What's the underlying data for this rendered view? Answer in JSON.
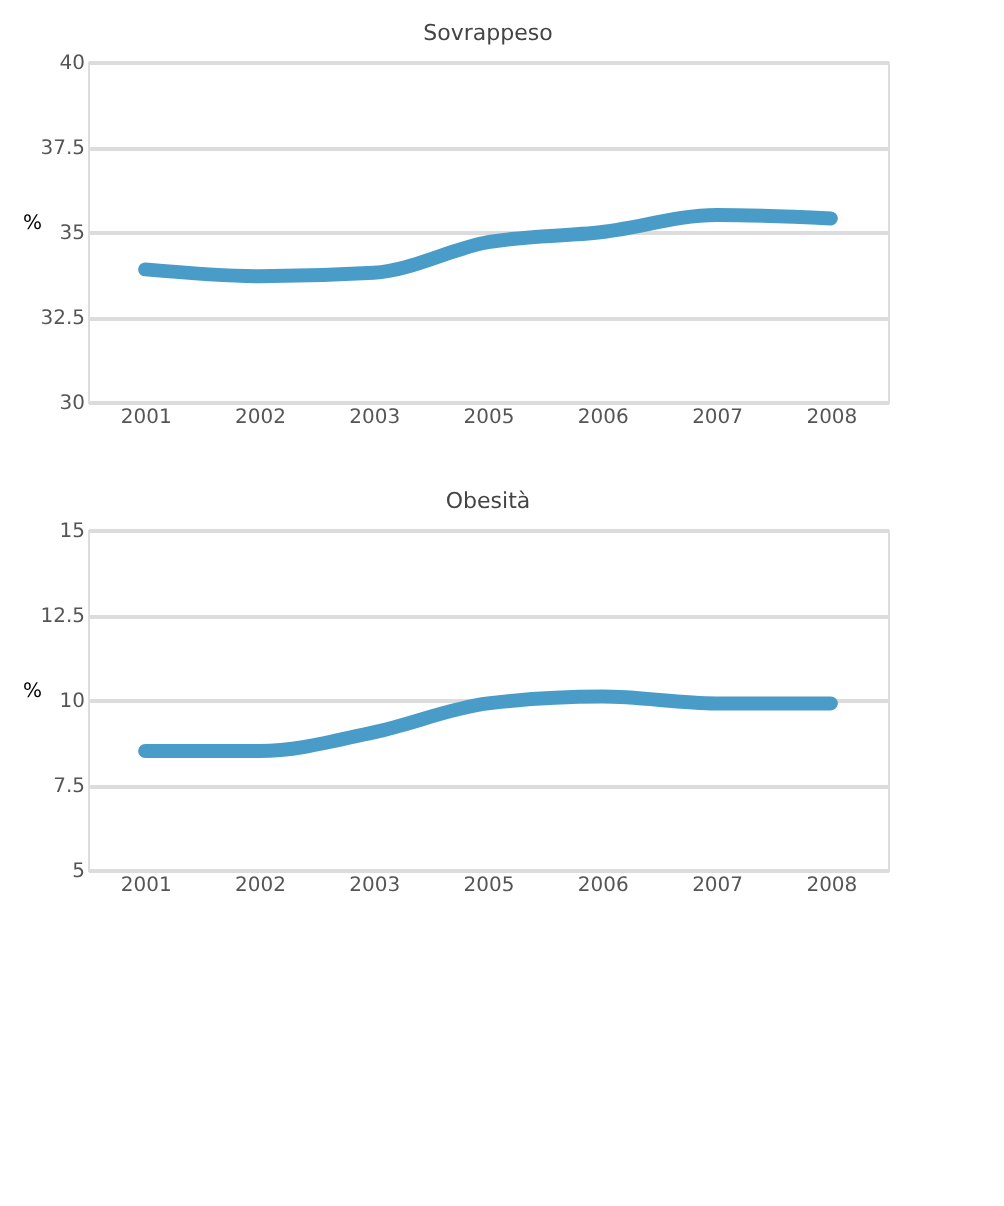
{
  "chart_data": [
    {
      "type": "line",
      "title": "Sovrappeso",
      "ylabel": "%",
      "categories": [
        "2001",
        "2002",
        "2003",
        "2005",
        "2006",
        "2007",
        "2008"
      ],
      "series": [
        {
          "color": "#4a9cc8",
          "values": [
            33.9,
            33.7,
            33.8,
            34.7,
            35.0,
            35.5,
            35.4
          ]
        }
      ],
      "ylim": [
        30,
        40
      ],
      "yticks": [
        30,
        32.5,
        35,
        37.5,
        40
      ],
      "grid": "y"
    },
    {
      "type": "line",
      "title": "Obesità",
      "ylabel": "%",
      "categories": [
        "2001",
        "2002",
        "2003",
        "2005",
        "2006",
        "2007",
        "2008"
      ],
      "series": [
        {
          "color": "#4a9cc8",
          "values": [
            8.5,
            8.5,
            9.05,
            9.9,
            10.1,
            9.9,
            9.9
          ]
        }
      ],
      "ylim": [
        5,
        15
      ],
      "yticks": [
        5,
        7.5,
        10,
        12.5,
        15
      ],
      "grid": "y"
    }
  ]
}
